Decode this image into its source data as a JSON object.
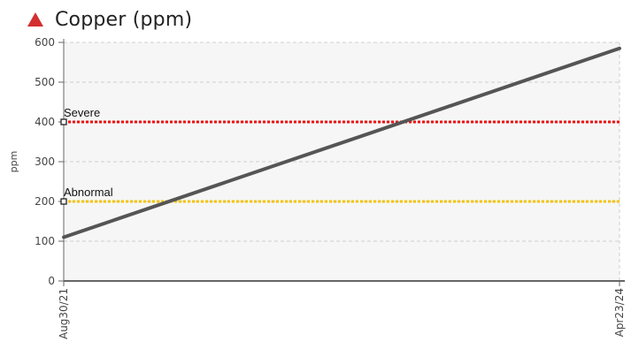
{
  "header": {
    "title": "Copper (ppm)",
    "status_icon": "warning-triangle-icon",
    "status_color": "#d32f2f"
  },
  "chart_data": {
    "type": "line",
    "title": "Copper (ppm)",
    "xlabel": "",
    "ylabel": "ppm",
    "x": [
      "Aug30/21",
      "Apr23/24"
    ],
    "ylim": [
      0,
      600
    ],
    "yticks": [
      0,
      100,
      200,
      300,
      400,
      500,
      600
    ],
    "grid": true,
    "series": [
      {
        "values": [
          110,
          585
        ],
        "color": "#555555"
      }
    ],
    "thresholds": [
      {
        "label": "Severe",
        "value": 400,
        "color": "#ee1111"
      },
      {
        "label": "Abnormal",
        "value": 200,
        "color": "#f5c400"
      }
    ]
  }
}
